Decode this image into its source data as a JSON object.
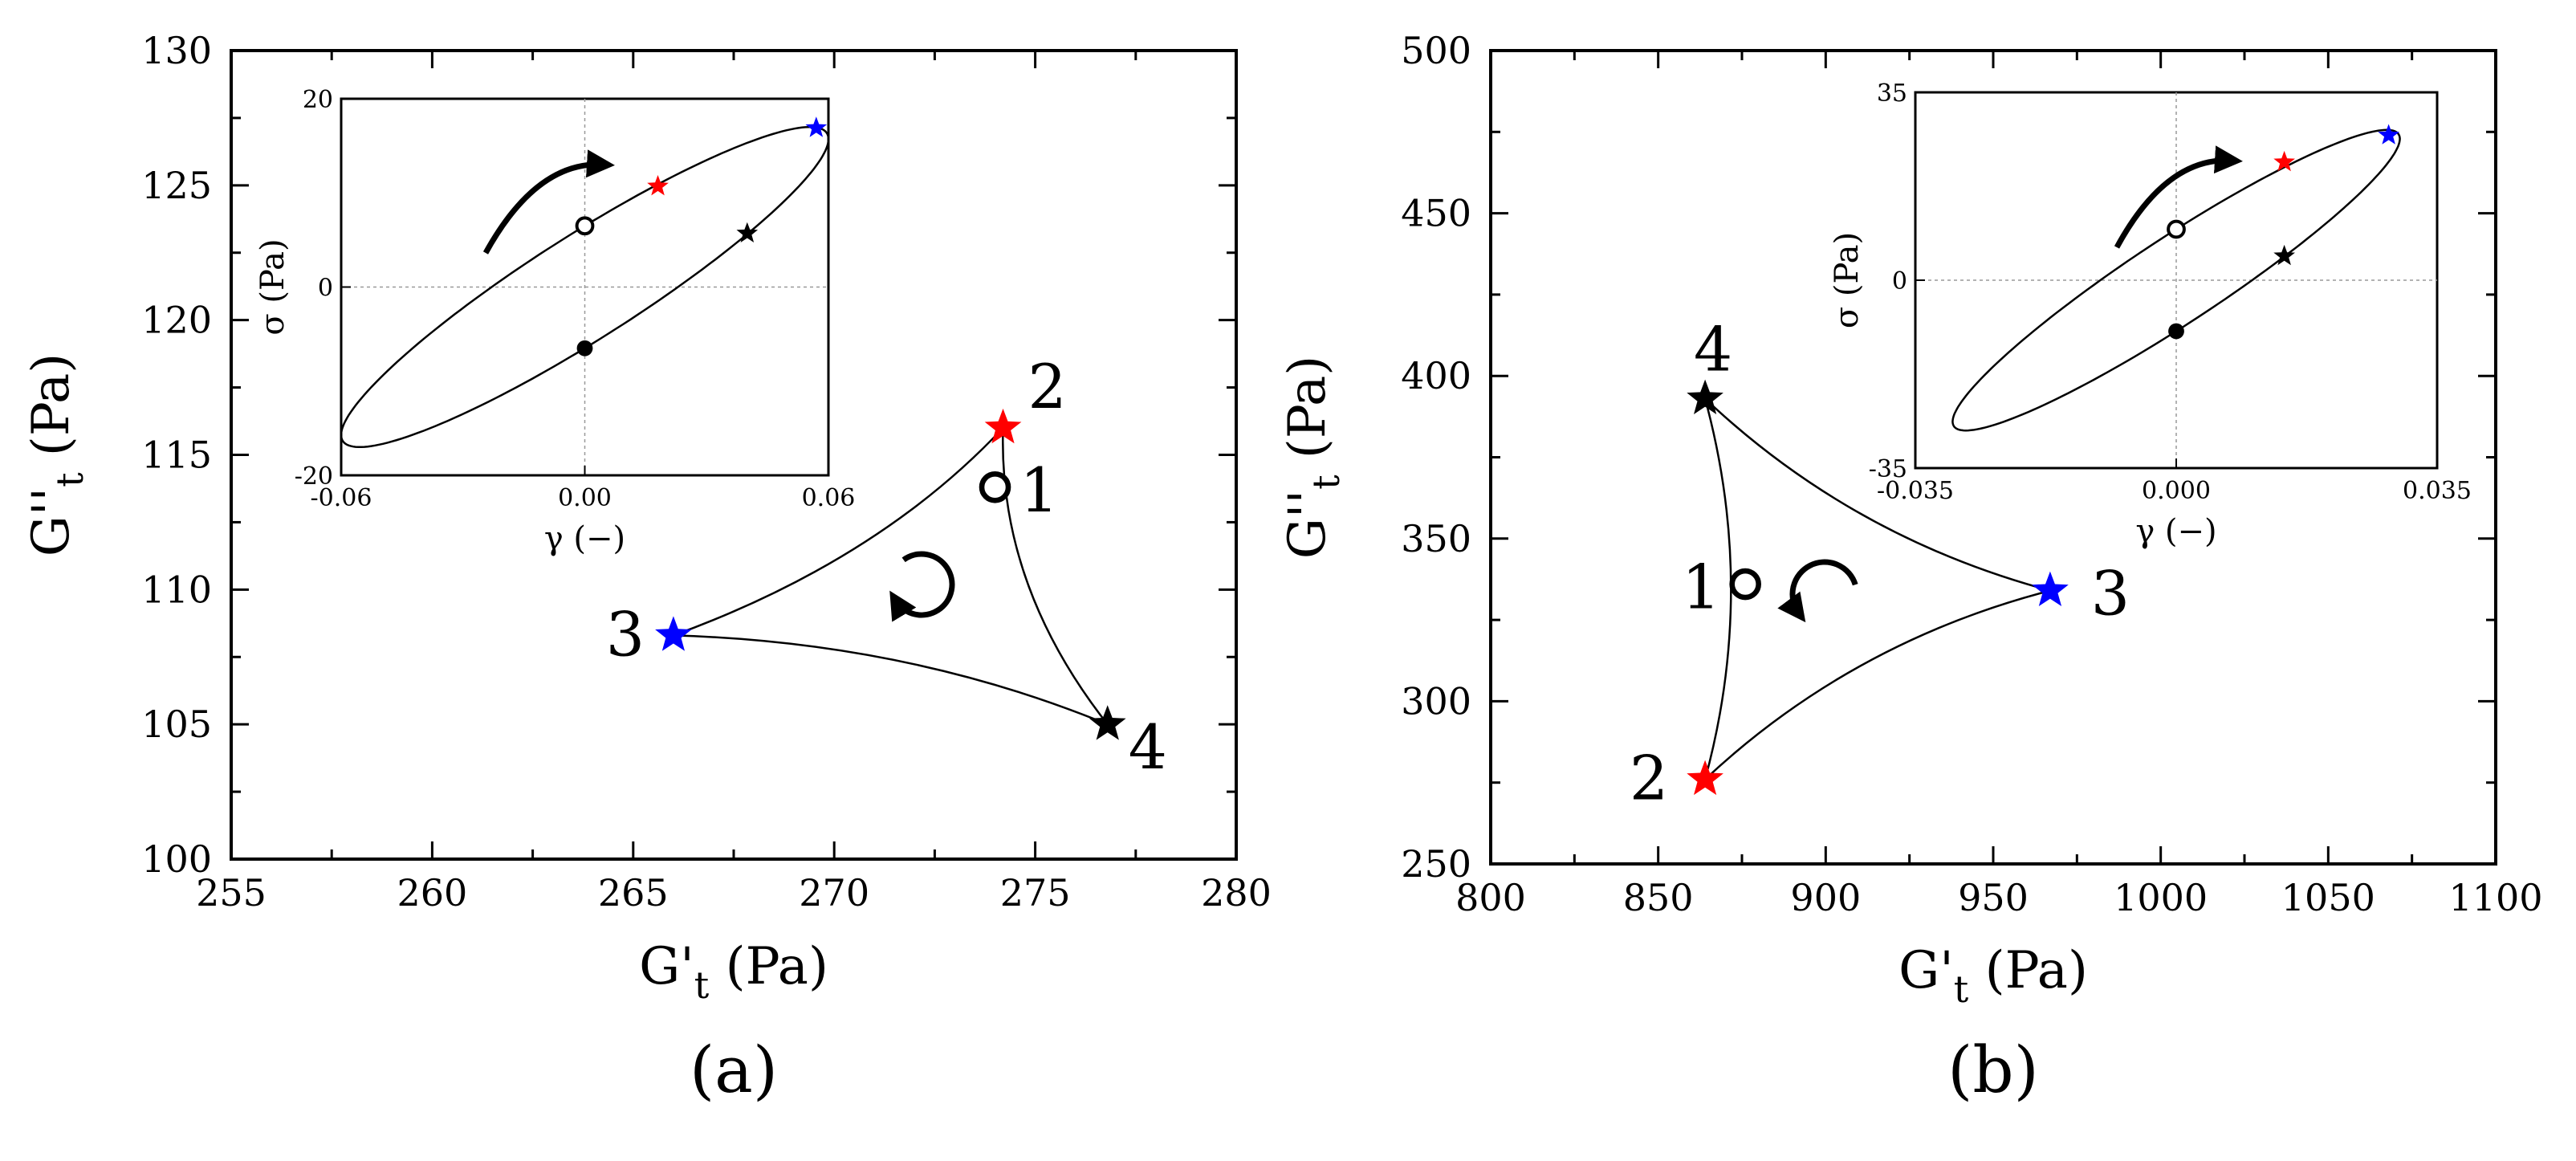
{
  "chart_data": [
    {
      "panel": "(a)",
      "type": "line",
      "xlabel": "G'",
      "xlabel_sub": "t",
      "xlabel_unit": "(Pa)",
      "ylabel": "G''",
      "ylabel_sub": "t",
      "ylabel_unit": "(Pa)",
      "xlim": [
        255,
        280
      ],
      "ylim": [
        100,
        130
      ],
      "xticks": [
        "255",
        "260",
        "265",
        "270",
        "275",
        "280"
      ],
      "yticks": [
        "100",
        "105",
        "110",
        "115",
        "120",
        "125",
        "130"
      ],
      "points": [
        {
          "label": "1",
          "x": 274.0,
          "y": 113.8,
          "marker": "open-circle",
          "color": "#000000"
        },
        {
          "label": "2",
          "x": 274.2,
          "y": 116.0,
          "marker": "star",
          "color": "#ff0000"
        },
        {
          "label": "3",
          "x": 266.0,
          "y": 108.3,
          "marker": "star",
          "color": "#0000ff"
        },
        {
          "label": "4",
          "x": 276.8,
          "y": 105.0,
          "marker": "star",
          "color": "#000000"
        }
      ],
      "direction": "clockwise",
      "inset": {
        "type": "line",
        "xlabel": "γ (−)",
        "ylabel": "σ (Pa)",
        "xlim": [
          -0.06,
          0.06
        ],
        "ylim": [
          -20,
          20
        ],
        "xticks": [
          "-0.06",
          "0.00",
          "0.06"
        ],
        "yticks": [
          "-20",
          "0",
          "20"
        ],
        "ellipse": {
          "strain_amplitude": 0.06,
          "stress_amplitude": 17,
          "stress_at_zero_strain": 6.5
        },
        "points": [
          {
            "x": 0.0,
            "y": 6.5,
            "marker": "open-circle",
            "color": "#000000"
          },
          {
            "x": 0.0,
            "y": -6.5,
            "marker": "filled-circle",
            "color": "#000000"
          },
          {
            "x": 0.018,
            "y": 10.7,
            "marker": "star",
            "color": "#ff0000"
          },
          {
            "x": 0.057,
            "y": 16.9,
            "marker": "star",
            "color": "#0000ff"
          },
          {
            "x": 0.04,
            "y": 5.7,
            "marker": "star",
            "color": "#000000"
          }
        ]
      }
    },
    {
      "panel": "(b)",
      "type": "line",
      "xlabel": "G'",
      "xlabel_sub": "t",
      "xlabel_unit": "(Pa)",
      "ylabel": "G''",
      "ylabel_sub": "t",
      "ylabel_unit": "(Pa)",
      "xlim": [
        800,
        1100
      ],
      "ylim": [
        250,
        500
      ],
      "xticks": [
        "800",
        "850",
        "900",
        "950",
        "1000",
        "1050",
        "1100"
      ],
      "yticks": [
        "250",
        "300",
        "350",
        "400",
        "450",
        "500"
      ],
      "points": [
        {
          "label": "1",
          "x": 876,
          "y": 336,
          "marker": "open-circle",
          "color": "#000000"
        },
        {
          "label": "2",
          "x": 864,
          "y": 276,
          "marker": "star",
          "color": "#ff0000"
        },
        {
          "label": "3",
          "x": 967,
          "y": 334,
          "marker": "star",
          "color": "#0000ff"
        },
        {
          "label": "4",
          "x": 864,
          "y": 393,
          "marker": "star",
          "color": "#000000"
        }
      ],
      "direction": "counter-clockwise",
      "inset": {
        "type": "line",
        "xlabel": "γ (−)",
        "ylabel": "σ (Pa)",
        "xlim": [
          -0.035,
          0.035
        ],
        "ylim": [
          -35,
          35
        ],
        "xticks": [
          "-0.035",
          "0.000",
          "0.035"
        ],
        "yticks": [
          "-35",
          "0",
          "35"
        ],
        "ellipse": {
          "strain_amplitude": 0.03,
          "stress_amplitude": 28,
          "stress_at_zero_strain": 9.5
        },
        "points": [
          {
            "x": 0.0,
            "y": 9.5,
            "marker": "open-circle",
            "color": "#000000"
          },
          {
            "x": 0.0,
            "y": -9.5,
            "marker": "filled-circle",
            "color": "#000000"
          },
          {
            "x": 0.0145,
            "y": 22.0,
            "marker": "star",
            "color": "#ff0000"
          },
          {
            "x": 0.0285,
            "y": 27.0,
            "marker": "star",
            "color": "#0000ff"
          },
          {
            "x": 0.0145,
            "y": 4.5,
            "marker": "star",
            "color": "#000000"
          }
        ]
      }
    }
  ]
}
